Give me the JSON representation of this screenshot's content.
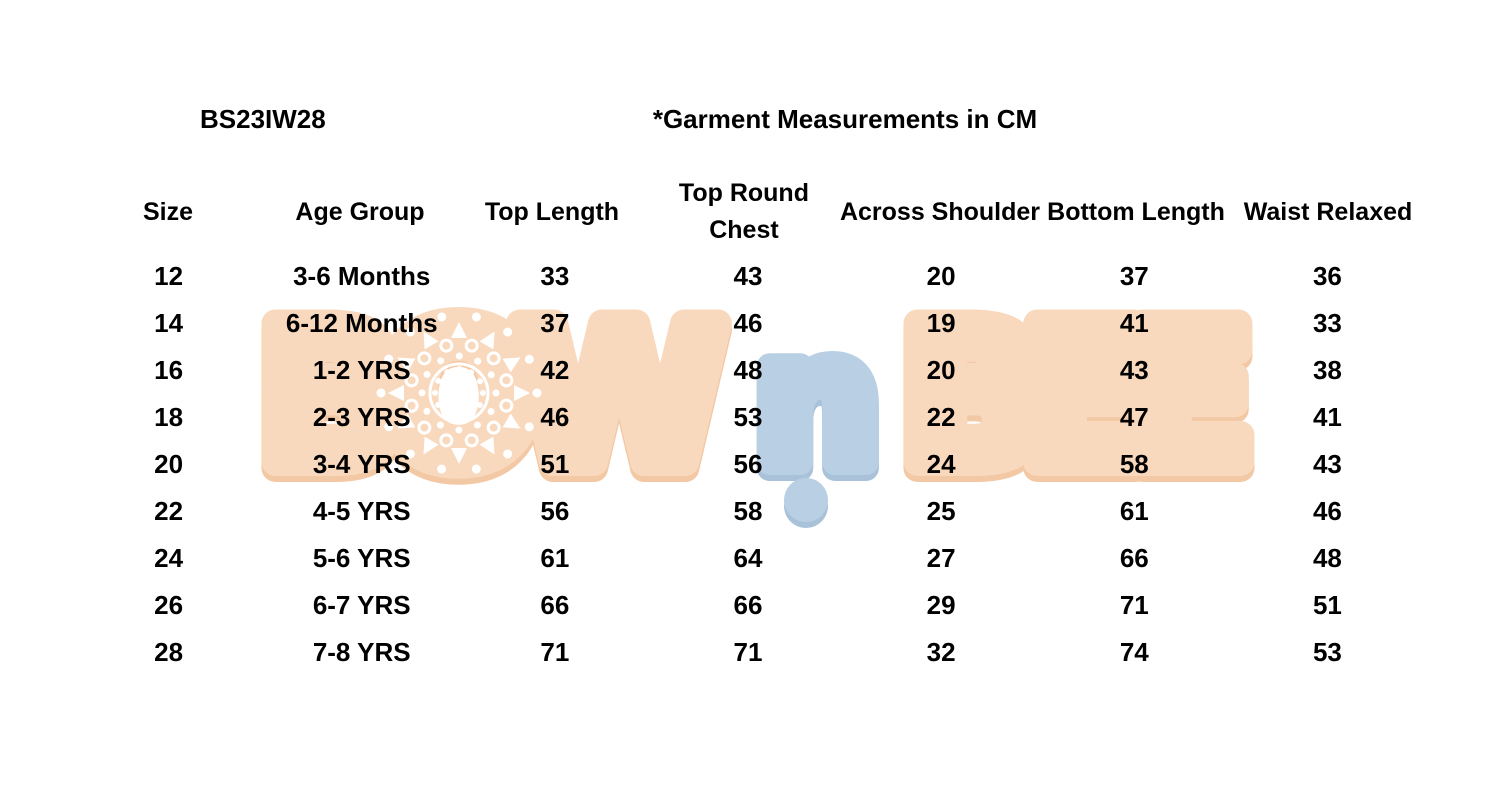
{
  "header": {
    "style_code": "BS23IW28",
    "title": "*Garment Measurements in CM"
  },
  "theme": {
    "ink": "#000000",
    "background": "#FFFFFF"
  },
  "watermark": {
    "brand_part_bow": "BOW",
    "brand_part_n": "n",
    "brand_part_bee": "BEE",
    "peach": "#F9D9BD",
    "peach_shadow": "#F3C8A5",
    "blue": "#B9CFE4",
    "blue_shadow": "#A9C2DA",
    "mandala_color": "#FFFFFF"
  },
  "chart_data": {
    "type": "table",
    "title": "*Garment Measurements in CM",
    "style_code": "BS23IW28",
    "units": "cm",
    "columns": [
      "Size",
      "Age Group",
      "Top Length",
      "Top Round\nChest",
      "Across Shoulder",
      "Bottom Length",
      "Waist Relaxed"
    ],
    "rows": [
      [
        "12",
        "3-6 Months",
        "33",
        "43",
        "20",
        "37",
        "36"
      ],
      [
        "14",
        "6-12 Months",
        "37",
        "46",
        "19",
        "41",
        "33"
      ],
      [
        "16",
        "1-2 YRS",
        "42",
        "48",
        "20",
        "43",
        "38"
      ],
      [
        "18",
        "2-3 YRS",
        "46",
        "53",
        "22",
        "47",
        "41"
      ],
      [
        "20",
        "3-4 YRS",
        "51",
        "56",
        "24",
        "58",
        "43"
      ],
      [
        "22",
        "4-5 YRS",
        "56",
        "58",
        "25",
        "61",
        "46"
      ],
      [
        "24",
        "5-6 YRS",
        "61",
        "64",
        "27",
        "66",
        "48"
      ],
      [
        "26",
        "6-7 YRS",
        "66",
        "66",
        "29",
        "71",
        "51"
      ],
      [
        "28",
        "7-8 YRS",
        "71",
        "71",
        "32",
        "74",
        "53"
      ]
    ]
  }
}
